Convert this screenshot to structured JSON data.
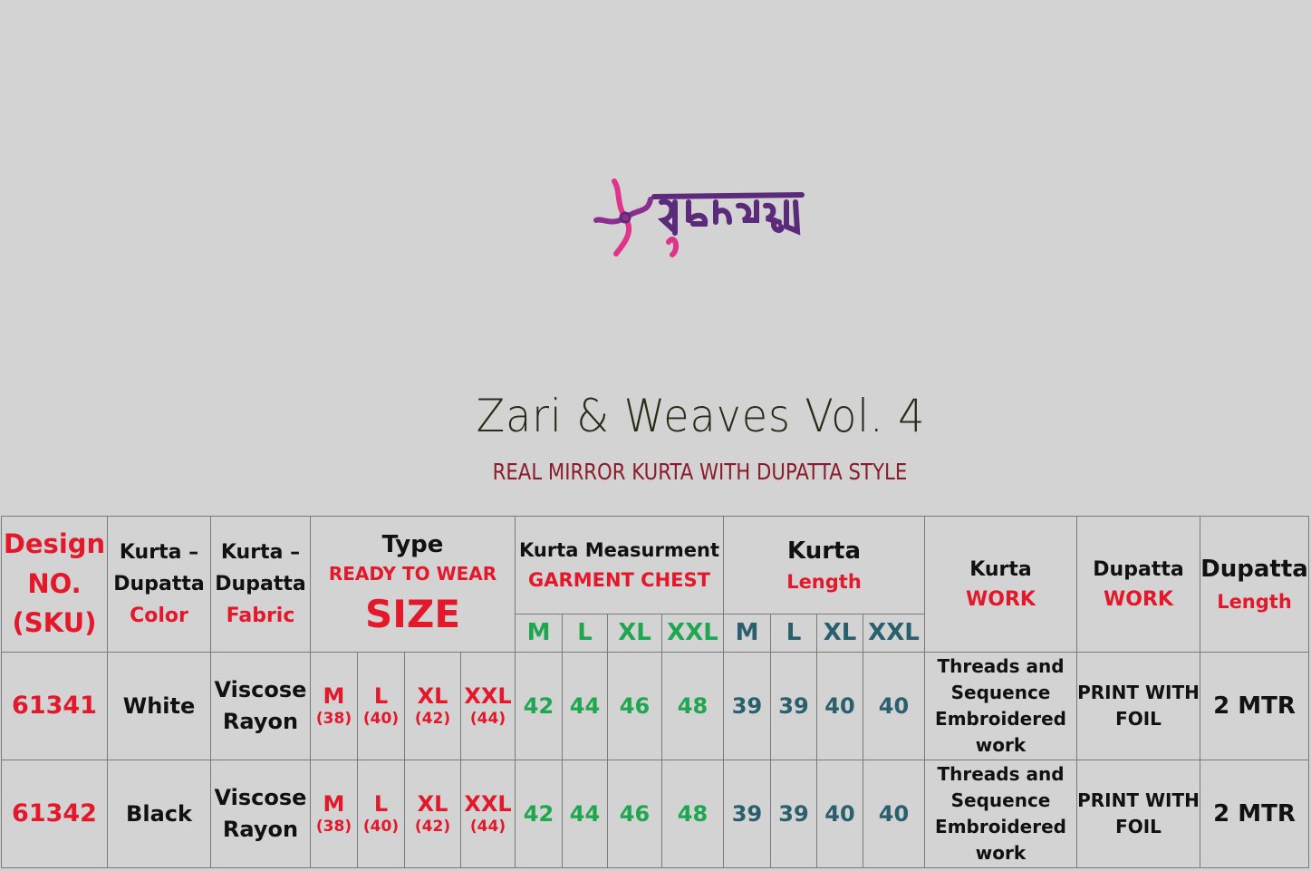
{
  "brand": {
    "logo_text": "शुभवस्त्रा",
    "colors": {
      "purple": "#5b2a7a",
      "pink": "#e0338a"
    }
  },
  "title": "Zari & Weaves Vol. 4",
  "subtitle": "REAL MIRROR KURTA WITH DUPATTA STYLE",
  "colors": {
    "red": "#e3182a",
    "green": "#1fa750",
    "teal": "#2a5f6e",
    "background": "#d3d3d3"
  },
  "table": {
    "headers": {
      "design": [
        "Design",
        "NO.",
        "(SKU)"
      ],
      "color": [
        "Kurta –",
        "Dupatta",
        "Color"
      ],
      "fabric": [
        "Kurta –",
        "Dupatta",
        "Fabric"
      ],
      "type": {
        "line1": "Type",
        "line2": "READY TO WEAR",
        "line3": "SIZE"
      },
      "measurement": {
        "line1": "Kurta Measurment",
        "line2": "GARMENT CHEST"
      },
      "length": {
        "line1": "Kurta",
        "line2": "Length"
      },
      "kurta_work": {
        "line1": "Kurta",
        "line2": "WORK"
      },
      "dupatta_work": {
        "line1": "Dupatta",
        "line2": "WORK"
      },
      "dupatta_length": {
        "line1": "Dupatta",
        "line2": "Length"
      },
      "chest_sizes": [
        "M",
        "L",
        "XL",
        "XXL"
      ],
      "length_sizes": [
        "M",
        "L",
        "XL",
        "XXL"
      ]
    },
    "rows": [
      {
        "design": "61341",
        "color": "White",
        "fabric": [
          "Viscose",
          "Rayon"
        ],
        "sizes": [
          {
            "s": "M",
            "n": "(38)"
          },
          {
            "s": "L",
            "n": "(40)"
          },
          {
            "s": "XL",
            "n": "(42)"
          },
          {
            "s": "XXL",
            "n": "(44)"
          }
        ],
        "chest": [
          "42",
          "44",
          "46",
          "48"
        ],
        "length": [
          "39",
          "39",
          "40",
          "40"
        ],
        "kurta_work": [
          "Threads and",
          "Sequence",
          "Embroidered",
          "work"
        ],
        "dupatta_work": [
          "PRINT WITH",
          "FOIL"
        ],
        "dupatta_length": "2 MTR"
      },
      {
        "design": "61342",
        "color": "Black",
        "fabric": [
          "Viscose",
          "Rayon"
        ],
        "sizes": [
          {
            "s": "M",
            "n": "(38)"
          },
          {
            "s": "L",
            "n": "(40)"
          },
          {
            "s": "XL",
            "n": "(42)"
          },
          {
            "s": "XXL",
            "n": "(44)"
          }
        ],
        "chest": [
          "42",
          "44",
          "46",
          "48"
        ],
        "length": [
          "39",
          "39",
          "40",
          "40"
        ],
        "kurta_work": [
          "Threads and",
          "Sequence",
          "Embroidered",
          "work"
        ],
        "dupatta_work": [
          "PRINT WITH",
          "FOIL"
        ],
        "dupatta_length": "2 MTR"
      }
    ]
  }
}
